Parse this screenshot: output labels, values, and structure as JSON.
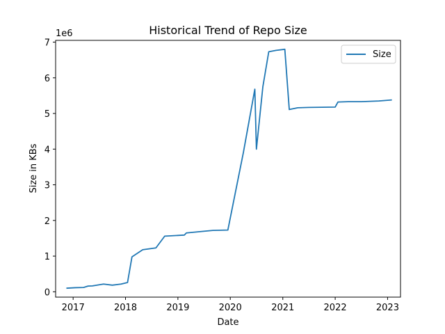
{
  "chart_data": {
    "type": "line",
    "title": "Historical Trend of Repo Size",
    "xlabel": "Date",
    "ylabel": "Size in KBs",
    "y_offset_label": "1e6",
    "xlim": [
      "2016-09-01",
      "2023-04-01"
    ],
    "ylim": [
      -150000,
      7050000
    ],
    "x_ticks": [
      {
        "date": "2017-01-01",
        "label": "2017"
      },
      {
        "date": "2018-01-01",
        "label": "2018"
      },
      {
        "date": "2019-01-01",
        "label": "2019"
      },
      {
        "date": "2020-01-01",
        "label": "2020"
      },
      {
        "date": "2021-01-01",
        "label": "2021"
      },
      {
        "date": "2022-01-01",
        "label": "2022"
      },
      {
        "date": "2023-01-01",
        "label": "2023"
      }
    ],
    "y_ticks": [
      {
        "value": 0,
        "label": "0"
      },
      {
        "value": 1000000,
        "label": "1"
      },
      {
        "value": 2000000,
        "label": "2"
      },
      {
        "value": 3000000,
        "label": "3"
      },
      {
        "value": 4000000,
        "label": "4"
      },
      {
        "value": 5000000,
        "label": "5"
      },
      {
        "value": 6000000,
        "label": "6"
      },
      {
        "value": 7000000,
        "label": "7"
      }
    ],
    "grid": false,
    "legend_position": "top-right",
    "series": [
      {
        "name": "Size",
        "color": "#1f77b4",
        "points": [
          [
            "2016-11-15",
            100000
          ],
          [
            "2017-01-15",
            115000
          ],
          [
            "2017-03-15",
            120000
          ],
          [
            "2017-04-15",
            160000
          ],
          [
            "2017-05-15",
            165000
          ],
          [
            "2017-08-01",
            215000
          ],
          [
            "2017-10-01",
            185000
          ],
          [
            "2017-12-01",
            215000
          ],
          [
            "2018-01-15",
            260000
          ],
          [
            "2018-02-15",
            980000
          ],
          [
            "2018-05-01",
            1180000
          ],
          [
            "2018-08-01",
            1230000
          ],
          [
            "2018-10-01",
            1560000
          ],
          [
            "2019-02-15",
            1590000
          ],
          [
            "2019-03-01",
            1650000
          ],
          [
            "2019-09-01",
            1720000
          ],
          [
            "2019-12-15",
            1730000
          ],
          [
            "2020-04-01",
            3900000
          ],
          [
            "2020-06-20",
            5680000
          ],
          [
            "2020-07-01",
            4000000
          ],
          [
            "2020-08-15",
            5750000
          ],
          [
            "2020-09-25",
            6730000
          ],
          [
            "2020-11-15",
            6770000
          ],
          [
            "2021-01-15",
            6800000
          ],
          [
            "2021-02-15",
            5110000
          ],
          [
            "2021-04-15",
            5160000
          ],
          [
            "2021-07-01",
            5170000
          ],
          [
            "2022-01-01",
            5180000
          ],
          [
            "2022-01-20",
            5320000
          ],
          [
            "2022-04-01",
            5330000
          ],
          [
            "2022-07-01",
            5330000
          ],
          [
            "2022-11-01",
            5350000
          ],
          [
            "2023-01-31",
            5380000
          ]
        ]
      }
    ]
  }
}
